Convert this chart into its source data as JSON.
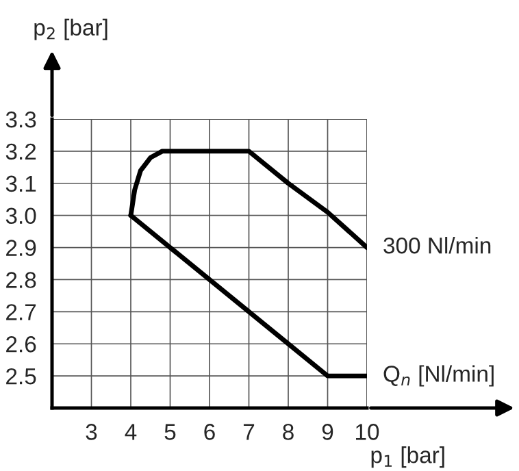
{
  "chart_data": {
    "type": "line",
    "xlabel": "p$_{1}$ [bar]",
    "ylabel": "p$_{2}$ [bar]",
    "xlim": [
      2,
      10
    ],
    "xticks": [
      3,
      4,
      5,
      6,
      7,
      8,
      9,
      10
    ],
    "ylim": [
      2.4,
      3.3
    ],
    "yticks": [
      {
        "value": 2.5,
        "label": "2.5"
      },
      {
        "value": 2.6,
        "label": "2.6"
      },
      {
        "value": 2.7,
        "label": "2.7"
      },
      {
        "value": 2.8,
        "label": "2.8"
      },
      {
        "value": 2.9,
        "label": "2.9"
      },
      {
        "value": 3.0,
        "label": "3.0"
      },
      {
        "value": 3.1,
        "label": "3.1"
      },
      {
        "value": 3.2,
        "label": "3.2"
      },
      {
        "value": 3.3,
        "label": "3.3"
      }
    ],
    "grid": true,
    "legend": false,
    "marker": "none",
    "line_style": "solid",
    "series": [
      {
        "name": "300 Nl/min",
        "color": "#000000",
        "x": [
          4,
          4.1,
          4.25,
          4.5,
          4.8,
          5,
          7,
          8,
          9,
          10
        ],
        "values": [
          3.0,
          3.08,
          3.14,
          3.18,
          3.2,
          3.2,
          3.2,
          3.1,
          3.01,
          2.9
        ]
      },
      {
        "name": "Q$_{n}$ [Nl/min]",
        "color": "#000000",
        "x": [
          4,
          9,
          10
        ],
        "values": [
          3.0,
          2.5,
          2.5
        ]
      }
    ]
  }
}
